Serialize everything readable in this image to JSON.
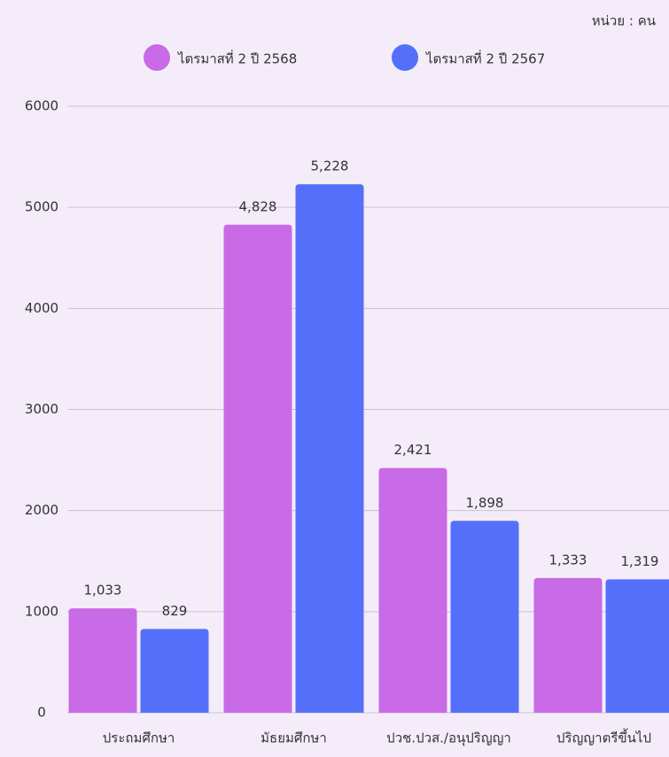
{
  "chart_data": {
    "type": "bar",
    "unit_label": "หน่วย : คน",
    "categories": [
      "ประถมศึกษา",
      "มัธยมศึกษา",
      "ปวช.ปวส./อนุปริญญา",
      "ปริญญาตรีขึ้นไป"
    ],
    "series": [
      {
        "name": "ไตรมาสที่ 2 ปี 2568",
        "color": "#c96ae6",
        "values": [
          1033,
          4828,
          2421,
          1333
        ],
        "value_labels": [
          "1,033",
          "4,828",
          "2,421",
          "1,333"
        ]
      },
      {
        "name": "ไตรมาสที่ 2 ปี 2567",
        "color": "#5470fb",
        "values": [
          829,
          5228,
          1898,
          1319
        ],
        "value_labels": [
          "829",
          "5,228",
          "1,898",
          "1,319"
        ]
      }
    ],
    "ylim": [
      0,
      6000
    ],
    "yticks": [
      0,
      1000,
      2000,
      3000,
      4000,
      5000,
      6000
    ],
    "grid": true
  }
}
